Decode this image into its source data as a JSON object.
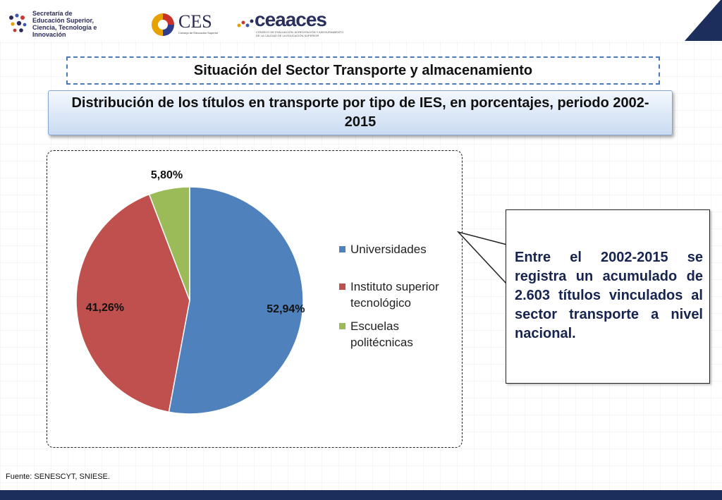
{
  "header": {
    "logos": {
      "senescyt_text": "Secretaría de\nEducación Superior,\nCiencia, Tecnología e Innovación",
      "ces_name": "CES",
      "ces_sub": "Consejo de Educación Superior",
      "ceaaces_name": "ceaaces",
      "ceaaces_sub": "CONSEJO DE EVALUACIÓN, ACREDITACIÓN Y ASEGURAMIENTO\nDE LA CALIDAD DE LA EDUCACIÓN SUPERIOR"
    },
    "accent_color": "#2a3b73"
  },
  "section_title": "Situación del Sector Transporte y almacenamiento",
  "chart_title": "Distribución de los títulos en transporte por tipo de IES, en porcentajes, periodo 2002-2015",
  "chart_data": {
    "type": "pie",
    "title": "",
    "categories": [
      "Universidades",
      "Instituto superior tecnológico",
      "Escuelas politécnicas"
    ],
    "values": [
      52.94,
      41.26,
      5.8
    ],
    "labels": [
      "52,94%",
      "41,26%",
      "5,80%"
    ],
    "colors": [
      "#4f81bd",
      "#c0504d",
      "#9bbb59"
    ],
    "legend_position": "right"
  },
  "legend": {
    "items": [
      {
        "label": "Universidades",
        "color": "#4f81bd"
      },
      {
        "label": "Instituto superior tecnológico",
        "color": "#c0504d"
      },
      {
        "label": "Escuelas politécnicas",
        "color": "#9bbb59"
      }
    ]
  },
  "callout": {
    "text": "Entre el 2002-2015 se registra un acumulado de 2.603 títulos vinculados al sector transporte a nivel nacional."
  },
  "source": "Fuente: SENESCYT, SNIESE."
}
